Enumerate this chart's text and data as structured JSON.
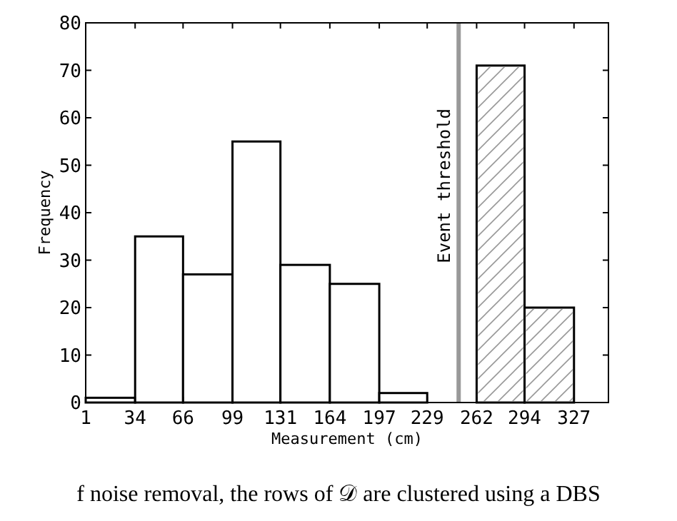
{
  "chart_data": {
    "type": "histogram",
    "xlabel": "Measurement (cm)",
    "ylabel": "Frequency",
    "bins": [
      1,
      34,
      66,
      99,
      131,
      164,
      197,
      229,
      262,
      294,
      327
    ],
    "values": [
      1,
      35,
      27,
      55,
      29,
      25,
      2,
      0,
      71,
      20
    ],
    "color": "#ffffff",
    "xlim": [
      1,
      350
    ],
    "xticks": [
      1,
      34,
      66,
      99,
      131,
      164,
      197,
      229,
      262,
      294,
      327
    ],
    "ylim": [
      0,
      80
    ],
    "yticks": [
      0,
      10,
      20,
      30,
      40,
      50,
      60,
      70,
      80
    ],
    "grid": false,
    "ref_lines": [
      {
        "axis": "x",
        "value": 250,
        "label": "Event threshold",
        "color": "#999999"
      }
    ],
    "annotations": [
      "f noise removal, the rows of 𝒟 are clustered using a DBS"
    ]
  }
}
